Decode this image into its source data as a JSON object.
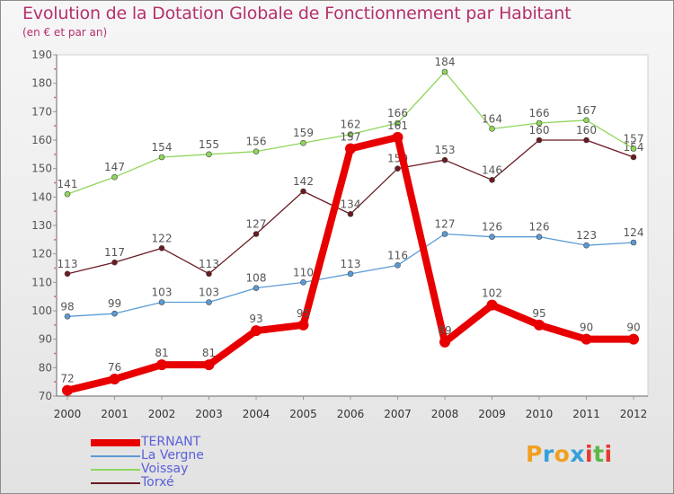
{
  "chart_data": {
    "type": "line",
    "title": "Evolution de la Dotation Globale de Fonctionnement par Habitant",
    "subtitle": "(en € et par an)",
    "xlabel": "",
    "ylabel": "",
    "ylim": [
      70,
      190
    ],
    "yticks": [
      70,
      80,
      90,
      100,
      110,
      120,
      130,
      140,
      150,
      160,
      170,
      180,
      190
    ],
    "categories": [
      "2000",
      "2001",
      "2002",
      "2003",
      "2004",
      "2005",
      "2006",
      "2007",
      "2008",
      "2009",
      "2010",
      "2011",
      "2012"
    ],
    "series": [
      {
        "name": "TERNANT",
        "color": "#e80000",
        "values": [
          72,
          76,
          81,
          81,
          93,
          95,
          157,
          161,
          89,
          102,
          95,
          90,
          90
        ]
      },
      {
        "name": "La Vergne",
        "color": "#5b9bd5",
        "values": [
          98,
          99,
          103,
          103,
          108,
          110,
          113,
          116,
          127,
          126,
          126,
          123,
          124
        ]
      },
      {
        "name": "Voissay",
        "color": "#8fd65a",
        "values": [
          141,
          147,
          154,
          155,
          156,
          159,
          162,
          166,
          184,
          164,
          166,
          167,
          157
        ]
      },
      {
        "name": "Torxé",
        "color": "#6b1a22",
        "values": [
          113,
          117,
          122,
          113,
          127,
          142,
          134,
          150,
          153,
          146,
          160,
          160,
          154
        ]
      }
    ],
    "legend_position": "bottom-left"
  },
  "logo": {
    "letters": [
      "P",
      "r",
      "o",
      "x",
      "i",
      "t",
      "i"
    ]
  }
}
